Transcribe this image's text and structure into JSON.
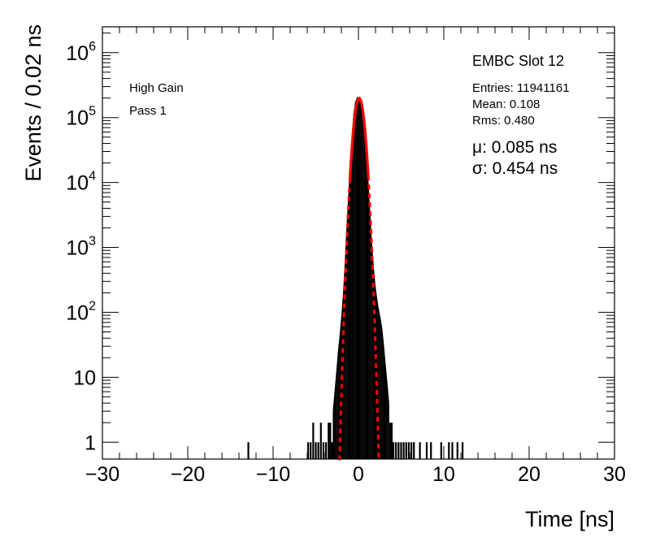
{
  "chart_data": {
    "type": "histogram",
    "title": "",
    "xlabel": "Time [ns]",
    "ylabel": "Events / 0.02 ns",
    "xlim": [
      -30,
      30
    ],
    "ylim": [
      0.55,
      2500000
    ],
    "yscale": "log",
    "x_ticks": [
      "−30",
      "−20",
      "−10",
      "0",
      "10",
      "20",
      "30"
    ],
    "x_tick_values": [
      -30,
      -20,
      -10,
      0,
      10,
      20,
      30
    ],
    "y_ticks": [
      {
        "value": 1,
        "base": "1",
        "exp": ""
      },
      {
        "value": 10,
        "base": "10",
        "exp": ""
      },
      {
        "value": 100,
        "base": "10",
        "exp": "2"
      },
      {
        "value": 1000,
        "base": "10",
        "exp": "3"
      },
      {
        "value": 10000,
        "base": "10",
        "exp": "4"
      },
      {
        "value": 100000,
        "base": "10",
        "exp": "5"
      },
      {
        "value": 1000000,
        "base": "10",
        "exp": "6"
      }
    ],
    "labels": {
      "left_line1": "High Gain",
      "left_line2": "Pass 1",
      "slot": "EMBC Slot 12",
      "entries": "Entries: 11941161",
      "mean": "Mean: 0.108",
      "rms": "Rms: 0.480",
      "mu": "μ: 0.085 ns",
      "sigma": "σ: 0.454 ns"
    },
    "series": [
      {
        "name": "",
        "kind": "histogram",
        "color": "#000000",
        "points": [
          {
            "x": -12.9,
            "y": 1
          },
          {
            "x": -5.9,
            "y": 1
          },
          {
            "x": -5.6,
            "y": 1
          },
          {
            "x": -5.3,
            "y": 2
          },
          {
            "x": -5.0,
            "y": 1
          },
          {
            "x": -4.7,
            "y": 1
          },
          {
            "x": -4.4,
            "y": 2
          },
          {
            "x": -4.1,
            "y": 1
          },
          {
            "x": -3.8,
            "y": 1
          },
          {
            "x": -3.5,
            "y": 2
          },
          {
            "x": -3.3,
            "y": 2
          },
          {
            "x": -3.1,
            "y": 1
          },
          {
            "x": -2.9,
            "y": 3
          },
          {
            "x": -2.7,
            "y": 6
          },
          {
            "x": -2.5,
            "y": 12
          },
          {
            "x": -2.3,
            "y": 25
          },
          {
            "x": -2.1,
            "y": 45
          },
          {
            "x": -1.9,
            "y": 90
          },
          {
            "x": -1.7,
            "y": 200
          },
          {
            "x": -1.5,
            "y": 600
          },
          {
            "x": -1.3,
            "y": 2000
          },
          {
            "x": -1.1,
            "y": 6000
          },
          {
            "x": -0.9,
            "y": 18000
          },
          {
            "x": -0.7,
            "y": 50000
          },
          {
            "x": -0.5,
            "y": 110000
          },
          {
            "x": -0.3,
            "y": 170000
          },
          {
            "x": -0.1,
            "y": 200000
          },
          {
            "x": 0.1,
            "y": 195000
          },
          {
            "x": 0.3,
            "y": 165000
          },
          {
            "x": 0.5,
            "y": 115000
          },
          {
            "x": 0.7,
            "y": 60000
          },
          {
            "x": 0.9,
            "y": 25000
          },
          {
            "x": 1.1,
            "y": 9000
          },
          {
            "x": 1.3,
            "y": 3000
          },
          {
            "x": 1.5,
            "y": 1100
          },
          {
            "x": 1.7,
            "y": 500
          },
          {
            "x": 1.9,
            "y": 250
          },
          {
            "x": 2.1,
            "y": 160
          },
          {
            "x": 2.3,
            "y": 110
          },
          {
            "x": 2.5,
            "y": 80
          },
          {
            "x": 2.7,
            "y": 55
          },
          {
            "x": 2.9,
            "y": 30
          },
          {
            "x": 3.1,
            "y": 15
          },
          {
            "x": 3.3,
            "y": 8
          },
          {
            "x": 3.5,
            "y": 4
          },
          {
            "x": 3.7,
            "y": 2
          },
          {
            "x": 3.9,
            "y": 2
          },
          {
            "x": 4.1,
            "y": 1
          },
          {
            "x": 4.4,
            "y": 1
          },
          {
            "x": 4.7,
            "y": 1
          },
          {
            "x": 5.0,
            "y": 1
          },
          {
            "x": 5.3,
            "y": 1
          },
          {
            "x": 5.6,
            "y": 1
          },
          {
            "x": 5.9,
            "y": 1
          },
          {
            "x": 6.2,
            "y": 1
          },
          {
            "x": 6.5,
            "y": 1
          },
          {
            "x": 7.2,
            "y": 1
          },
          {
            "x": 8.0,
            "y": 1
          },
          {
            "x": 8.5,
            "y": 1
          },
          {
            "x": 9.7,
            "y": 1
          },
          {
            "x": 10.6,
            "y": 1
          },
          {
            "x": 11.0,
            "y": 1
          },
          {
            "x": 11.6,
            "y": 1
          },
          {
            "x": 12.2,
            "y": 1
          }
        ]
      },
      {
        "name": "",
        "kind": "gaussian-fit",
        "color": "#ff0000",
        "amplitude": 200000,
        "mean": 0.085,
        "sigma": 0.454,
        "solid_range": [
          -1.0,
          1.15
        ],
        "dashed_range": [
          -2.35,
          2.45
        ]
      }
    ],
    "grid": false,
    "legend": "none"
  }
}
